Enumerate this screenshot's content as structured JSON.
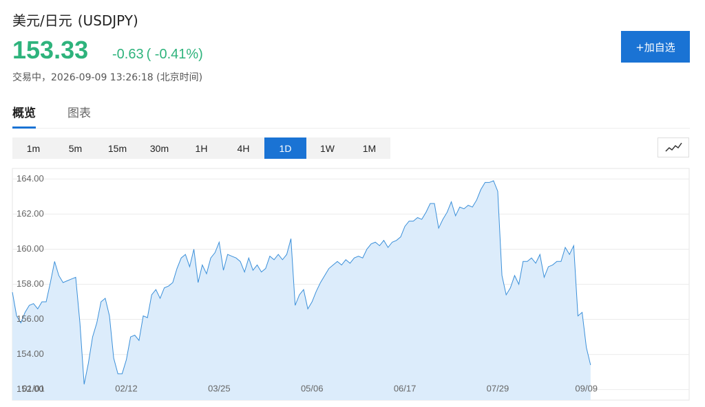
{
  "header": {
    "title": "美元/日元",
    "symbol": "(USDJPY)",
    "price": "153.33",
    "change": "-0.63",
    "change_pct": "( -0.41%)",
    "status": "交易中，2026-09-09 13:26:18 (北京时间)",
    "button": "+加自选"
  },
  "tabs": {
    "items": [
      "概览",
      "图表"
    ],
    "active": 0
  },
  "intervals": {
    "items": [
      "1m",
      "5m",
      "15m",
      "30m",
      "1H",
      "4H",
      "1D",
      "1W",
      "1M"
    ],
    "active": 6
  },
  "chart_data": {
    "type": "area",
    "color": "#3a8fd9",
    "fill": "#dcecfb",
    "grid": true,
    "categories": [
      null,
      null,
      null,
      null,
      null,
      "01/01",
      null,
      null,
      null,
      null,
      null,
      null,
      null,
      null,
      null,
      null,
      null,
      null,
      null,
      null,
      null,
      null,
      null,
      null,
      null,
      null,
      null,
      "02/12",
      null,
      null,
      null,
      null,
      null,
      null,
      null,
      null,
      null,
      null,
      null,
      null,
      null,
      null,
      null,
      null,
      null,
      null,
      null,
      null,
      null,
      "03/25",
      null,
      null,
      null,
      null,
      null,
      null,
      null,
      null,
      null,
      null,
      null,
      null,
      null,
      null,
      null,
      null,
      null,
      null,
      null,
      null,
      null,
      "05/06",
      null,
      null,
      null,
      null,
      null,
      null,
      null,
      null,
      null,
      null,
      null,
      null,
      null,
      null,
      null,
      null,
      null,
      null,
      null,
      null,
      null,
      "06/17",
      null,
      null,
      null,
      null,
      null,
      null,
      null,
      null,
      null,
      null,
      null,
      null,
      null,
      null,
      null,
      null,
      null,
      null,
      null,
      null,
      null,
      "07/29",
      null,
      null,
      null,
      null,
      null,
      null,
      null,
      null,
      null,
      null,
      null,
      null,
      null,
      null,
      null,
      null,
      null,
      null,
      null,
      null,
      "09/09",
      null
    ],
    "values": [
      157.55,
      156.2,
      155.8,
      156.4,
      156.8,
      156.9,
      156.6,
      157.0,
      157.0,
      158.1,
      159.3,
      158.5,
      158.1,
      158.2,
      158.3,
      158.4,
      155.8,
      152.3,
      153.5,
      155.0,
      155.8,
      157.0,
      157.2,
      156.2,
      153.8,
      152.9,
      152.9,
      153.7,
      155.0,
      155.1,
      154.8,
      156.2,
      156.1,
      157.4,
      157.7,
      157.2,
      157.8,
      157.9,
      158.1,
      158.9,
      159.5,
      159.7,
      159.0,
      160.0,
      158.1,
      159.1,
      158.6,
      159.5,
      159.8,
      160.4,
      158.8,
      159.7,
      159.6,
      159.5,
      159.3,
      158.7,
      159.5,
      158.8,
      159.1,
      158.7,
      158.9,
      159.6,
      159.4,
      159.7,
      159.4,
      159.7,
      160.6,
      156.8,
      157.4,
      157.7,
      156.6,
      157.0,
      157.6,
      158.1,
      158.5,
      158.9,
      159.1,
      159.3,
      159.1,
      159.4,
      159.2,
      159.5,
      159.6,
      159.5,
      160.0,
      160.3,
      160.4,
      160.2,
      160.5,
      160.1,
      160.4,
      160.5,
      160.7,
      161.3,
      161.6,
      161.6,
      161.8,
      161.7,
      162.1,
      162.6,
      162.6,
      161.2,
      161.7,
      162.1,
      162.7,
      161.9,
      162.4,
      162.3,
      162.5,
      162.4,
      162.8,
      163.4,
      163.8,
      163.8,
      163.9,
      163.3,
      158.5,
      157.4,
      157.8,
      158.5,
      158.0,
      159.3,
      159.3,
      159.5,
      159.2,
      159.7,
      158.4,
      159.0,
      159.1,
      159.3,
      159.3,
      160.1,
      159.7,
      160.2,
      156.2,
      156.4,
      154.4,
      153.4
    ],
    "ylim": [
      151.4,
      164.6
    ],
    "yticks": [
      {
        "value": 152,
        "label": "152.00"
      },
      {
        "value": 154,
        "label": "154.00"
      },
      {
        "value": 156,
        "label": "156.00"
      },
      {
        "value": 158,
        "label": "158.00"
      },
      {
        "value": 160,
        "label": "160.00"
      },
      {
        "value": 162,
        "label": "162.00"
      },
      {
        "value": 164,
        "label": "164.00"
      }
    ]
  }
}
